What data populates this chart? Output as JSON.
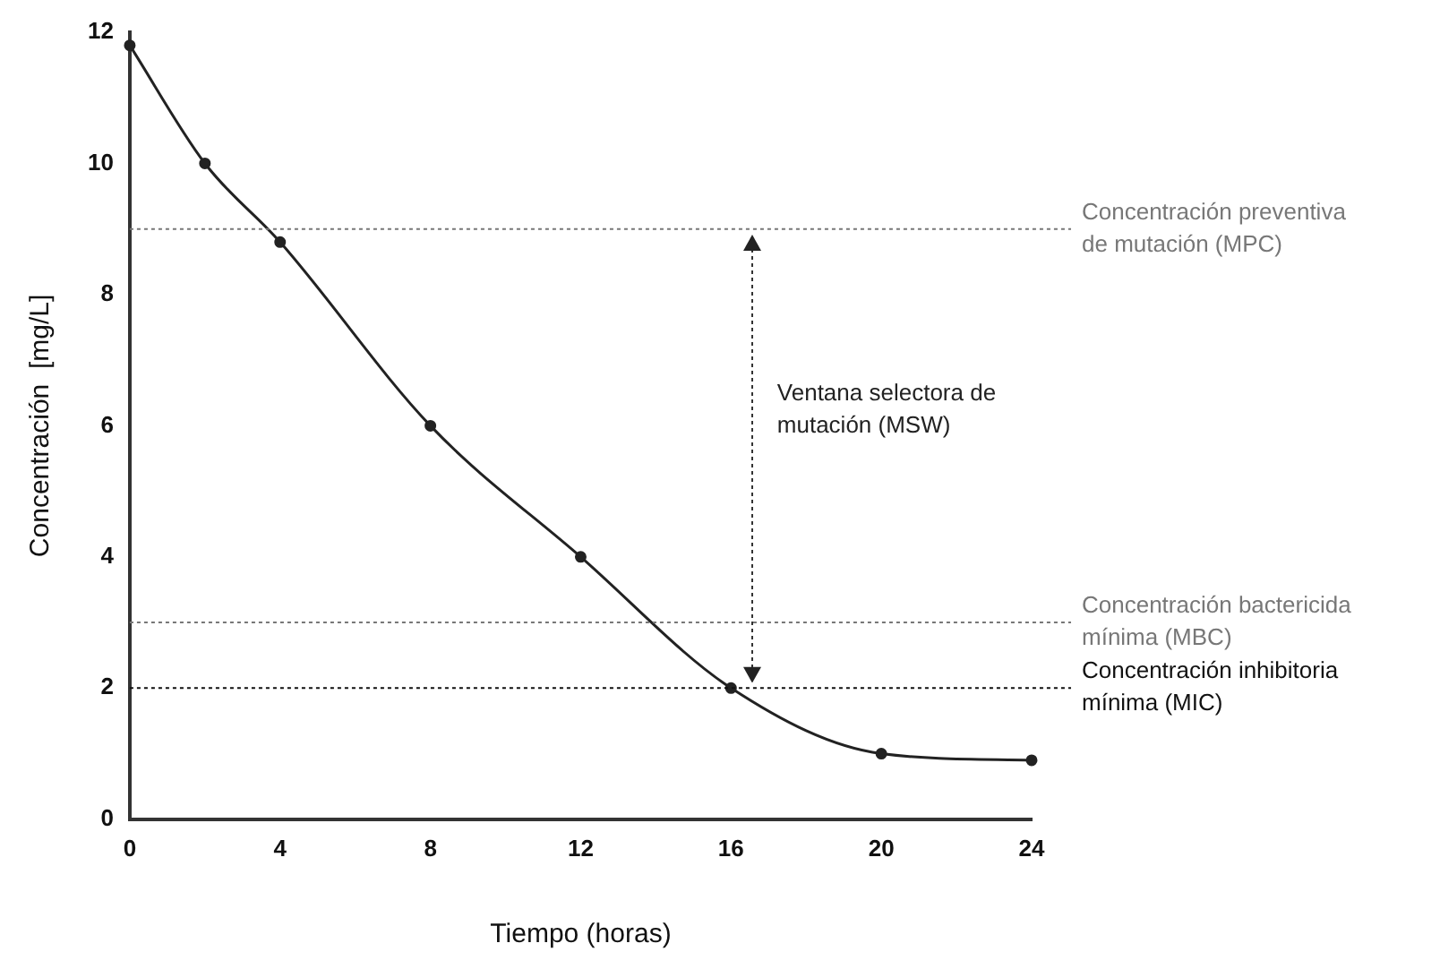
{
  "chart_data": {
    "type": "line",
    "xlabel": "Tiempo (horas)",
    "ylabel": "Concentración  [mg/L]",
    "x": [
      0,
      2,
      4,
      8,
      12,
      16,
      20,
      24
    ],
    "series": [
      {
        "color": "#222222",
        "values": [
          11.8,
          10,
          8.8,
          6,
          4,
          2,
          1,
          0.9
        ]
      }
    ],
    "xlim": [
      0,
      24
    ],
    "xticks": [
      0,
      4,
      8,
      12,
      16,
      20,
      24
    ],
    "ylim": [
      0,
      12
    ],
    "yticks": [
      0,
      2,
      4,
      6,
      8,
      10,
      12
    ],
    "grid": false,
    "legend": false,
    "marker": "circle",
    "line_style": "solid",
    "ref_lines": [
      {
        "axis": "y",
        "value": 9,
        "label": "Concentración preventiva de mutación (MPC)",
        "color": "#777777",
        "line_style": "dotted"
      },
      {
        "axis": "y",
        "value": 3,
        "label": "Concentración bactericida mínima (MBC)",
        "color": "#777777",
        "line_style": "dotted"
      },
      {
        "axis": "y",
        "value": 2,
        "label": "Concentración inhibitoria mínima (MIC)",
        "color": "#111111",
        "line_style": "dotted"
      }
    ],
    "annotations": [
      "Ventana selectora de mutación (MSW)"
    ]
  }
}
